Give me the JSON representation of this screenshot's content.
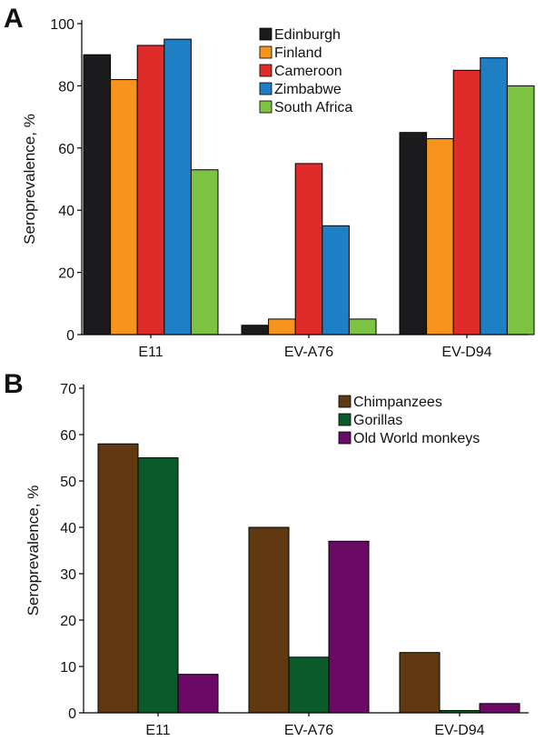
{
  "chart_data": [
    {
      "panel": "A",
      "type": "bar",
      "title": "",
      "xlabel": "",
      "ylabel": "Seroprevalence, %",
      "ylim": [
        0,
        100
      ],
      "yticks": [
        0,
        20,
        40,
        60,
        80,
        100
      ],
      "categories": [
        "E11",
        "EV-A76",
        "EV-D94"
      ],
      "series": [
        {
          "name": "Edinburgh",
          "color": "#1b1b1e",
          "values": [
            90,
            3,
            65
          ]
        },
        {
          "name": "Finland",
          "color": "#f7941d",
          "values": [
            82,
            5,
            63
          ]
        },
        {
          "name": "Cameroon",
          "color": "#e02b2b",
          "values": [
            93,
            55,
            85
          ]
        },
        {
          "name": "Zimbabwe",
          "color": "#1f7fc5",
          "values": [
            95,
            35,
            89
          ]
        },
        {
          "name": "South Africa",
          "color": "#7dc242",
          "values": [
            53,
            5,
            80
          ]
        }
      ],
      "grid": false,
      "legend": "top-right"
    },
    {
      "panel": "B",
      "type": "bar",
      "title": "",
      "xlabel": "",
      "ylabel": "Seroprevalence, %",
      "ylim": [
        0,
        70
      ],
      "yticks": [
        0,
        10,
        20,
        30,
        40,
        50,
        60,
        70
      ],
      "categories": [
        "E11",
        "EV-A76",
        "EV-D94"
      ],
      "series": [
        {
          "name": "Chimpanzees",
          "color": "#603913",
          "values": [
            58,
            40,
            13
          ]
        },
        {
          "name": "Gorillas",
          "color": "#0b5a2c",
          "values": [
            55,
            12,
            0.5
          ]
        },
        {
          "name": "Old World monkeys",
          "color": "#6a0a64",
          "values": [
            8.3,
            37,
            2
          ]
        }
      ],
      "grid": false,
      "legend": "top-right"
    }
  ]
}
